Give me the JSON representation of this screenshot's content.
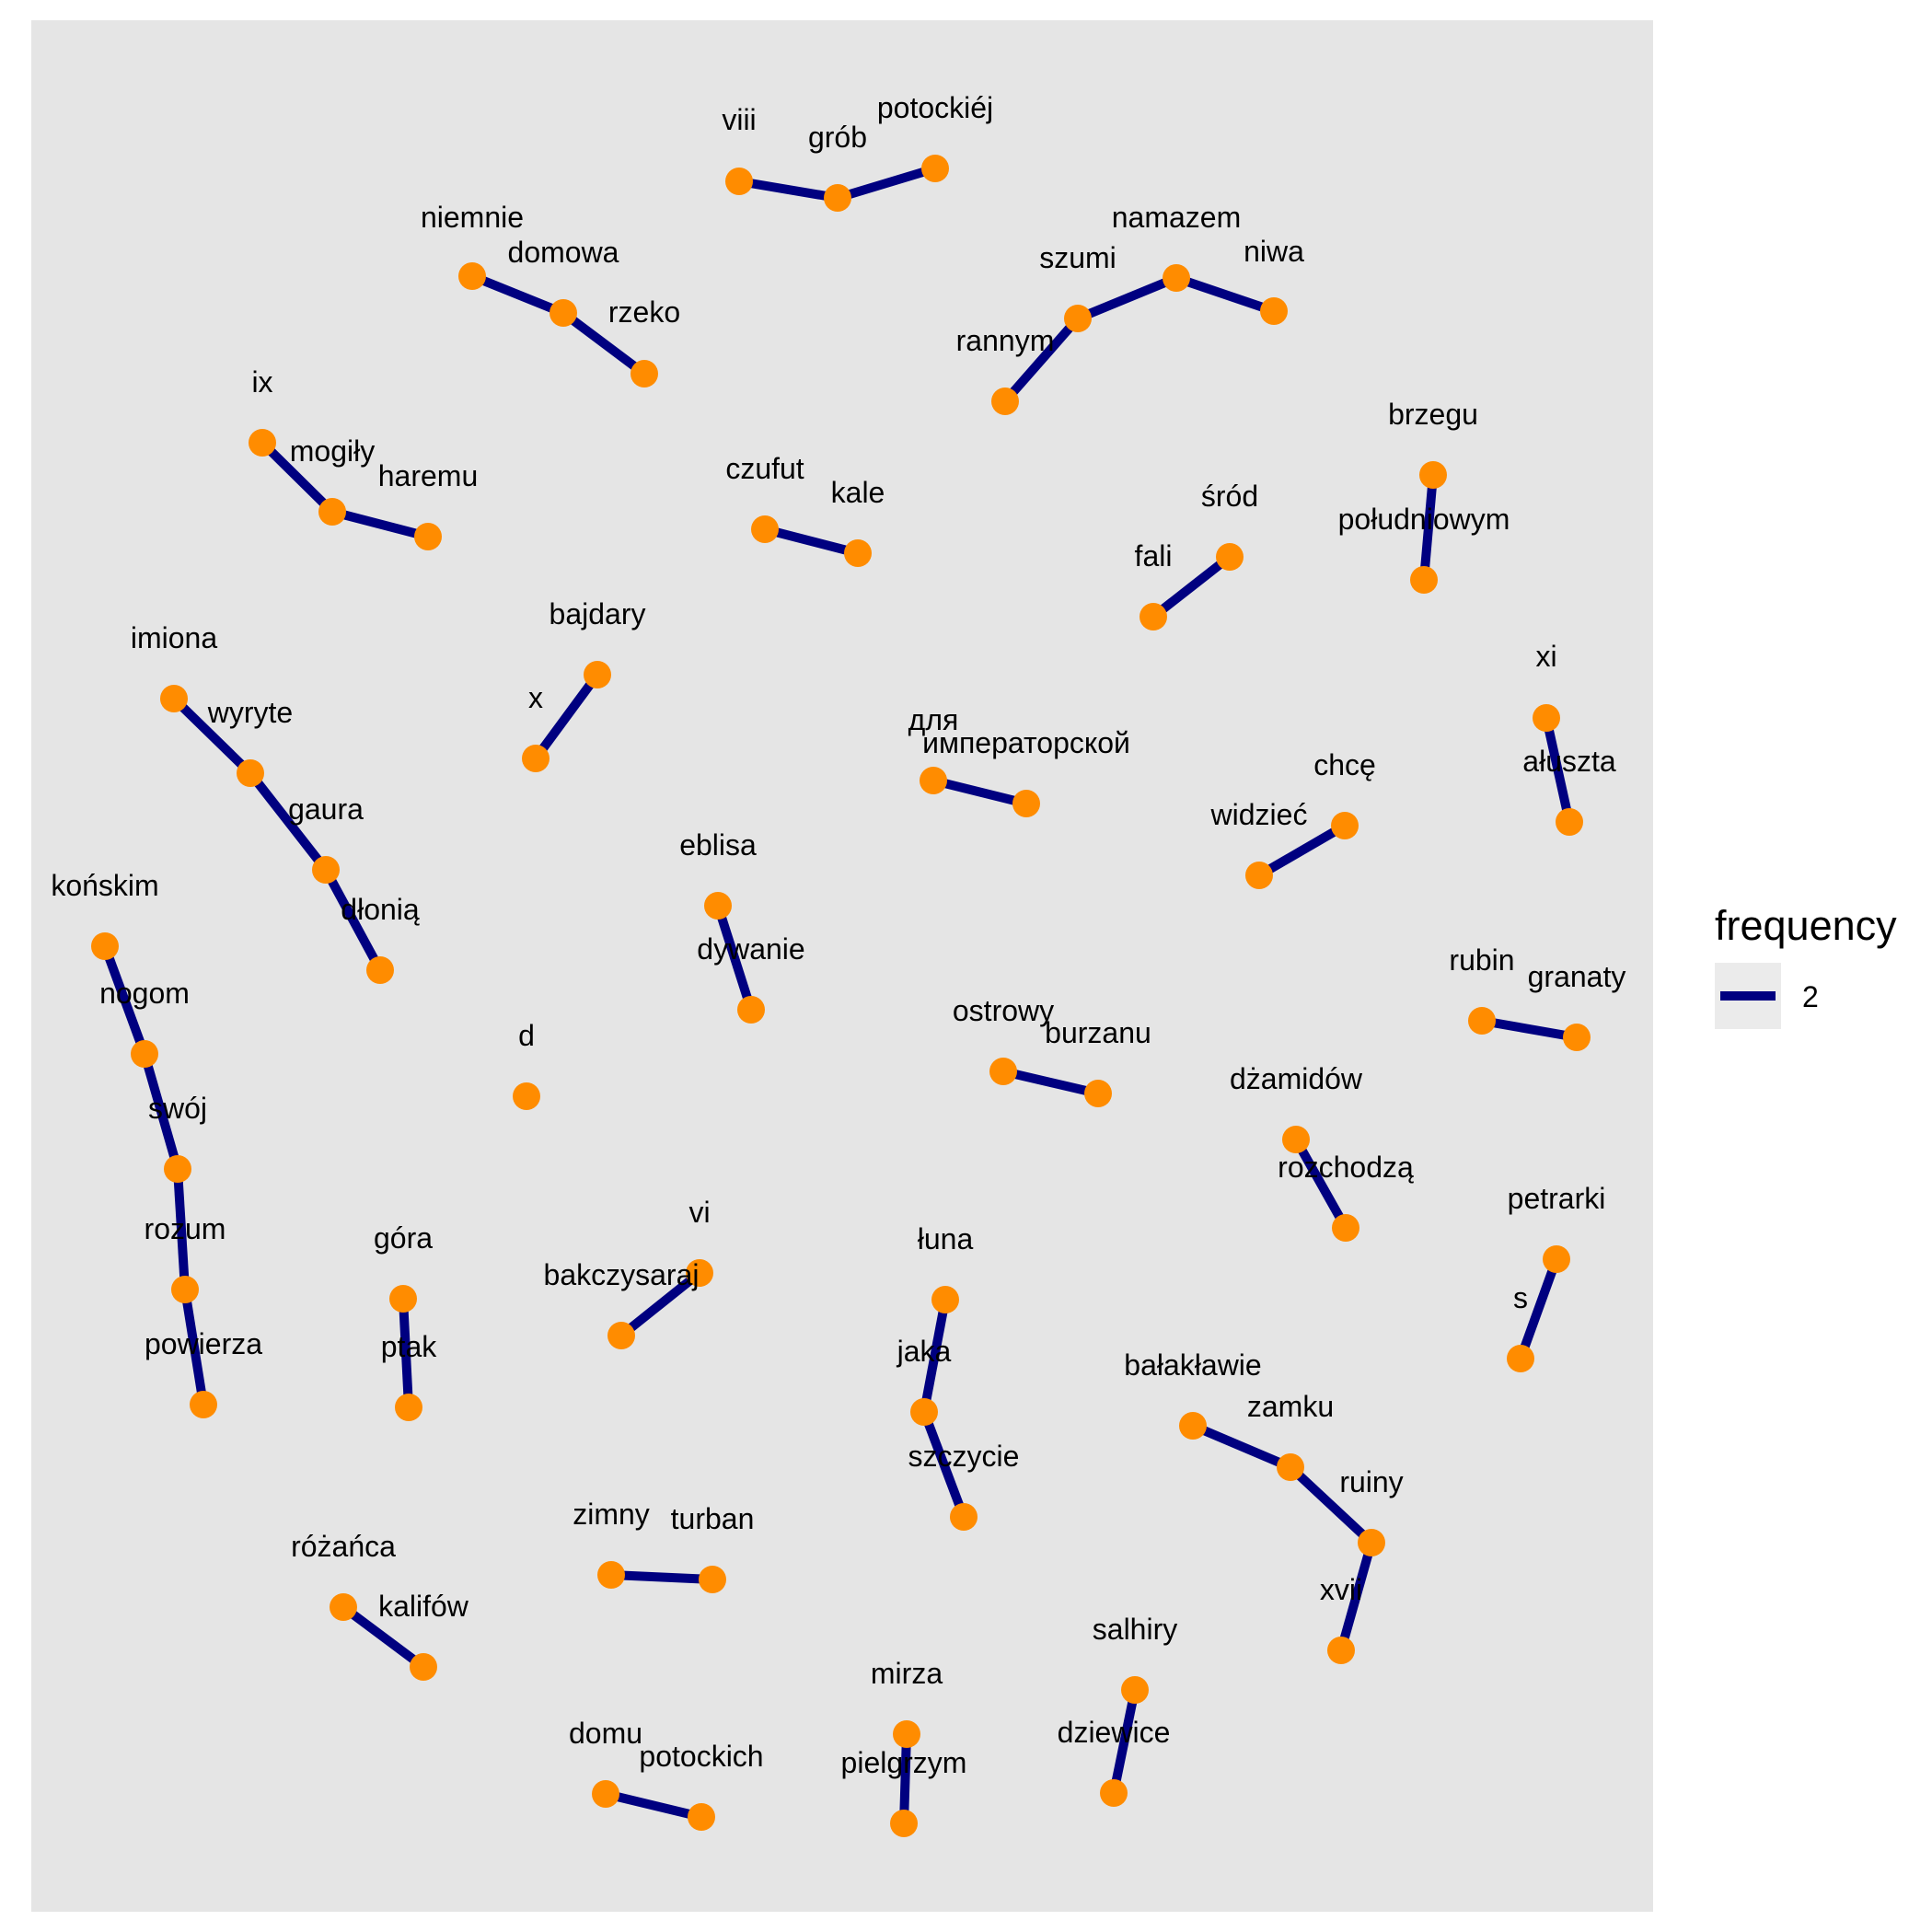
{
  "colors": {
    "panel_background": "#E5E5E5",
    "edge": "#000080",
    "node": "#FF8C00",
    "legend_key_background": "#EBEBEB"
  },
  "legend": {
    "title": "frequency",
    "entries": [
      {
        "label": "2"
      }
    ]
  },
  "graph": {
    "nodes": [
      {
        "id": "viii",
        "label": "viii"
      },
      {
        "id": "grob",
        "label": "grób"
      },
      {
        "id": "potockiej",
        "label": "potockiéj"
      },
      {
        "id": "niemnie",
        "label": "niemnie"
      },
      {
        "id": "domowa",
        "label": "domowa"
      },
      {
        "id": "rzeko",
        "label": "rzeko"
      },
      {
        "id": "namazem",
        "label": "namazem"
      },
      {
        "id": "szumi",
        "label": "szumi"
      },
      {
        "id": "niwa",
        "label": "niwa"
      },
      {
        "id": "rannym",
        "label": "rannym"
      },
      {
        "id": "ix",
        "label": "ix"
      },
      {
        "id": "mogily",
        "label": "mogiły"
      },
      {
        "id": "haremu",
        "label": "haremu"
      },
      {
        "id": "czufut",
        "label": "czufut"
      },
      {
        "id": "kale",
        "label": "kale"
      },
      {
        "id": "brzegu",
        "label": "brzegu"
      },
      {
        "id": "poludniowym",
        "label": "południowym"
      },
      {
        "id": "srod",
        "label": "śród"
      },
      {
        "id": "fali",
        "label": "fali"
      },
      {
        "id": "bajdary",
        "label": "bajdary"
      },
      {
        "id": "x",
        "label": "x"
      },
      {
        "id": "imiona",
        "label": "imiona"
      },
      {
        "id": "wyryte",
        "label": "wyryte"
      },
      {
        "id": "gaura",
        "label": "gaura"
      },
      {
        "id": "dlonia",
        "label": "dłonią"
      },
      {
        "id": "dlya",
        "label": "для"
      },
      {
        "id": "imperatorskoy",
        "label": "императорской"
      },
      {
        "id": "xi",
        "label": "xi"
      },
      {
        "id": "aluszta",
        "label": "ałuszta"
      },
      {
        "id": "chce",
        "label": "chcę"
      },
      {
        "id": "widziec",
        "label": "widzieć"
      },
      {
        "id": "konskim",
        "label": "końskim"
      },
      {
        "id": "nogom",
        "label": "nogom"
      },
      {
        "id": "swoj",
        "label": "swój"
      },
      {
        "id": "rozum",
        "label": "rozum"
      },
      {
        "id": "powierza",
        "label": "powierza"
      },
      {
        "id": "eblisa",
        "label": "eblisa"
      },
      {
        "id": "dywanie",
        "label": "dywanie"
      },
      {
        "id": "rubin",
        "label": "rubin"
      },
      {
        "id": "granaty",
        "label": "granaty"
      },
      {
        "id": "ostrowy",
        "label": "ostrowy"
      },
      {
        "id": "burzanu",
        "label": "burzanu"
      },
      {
        "id": "d",
        "label": "d"
      },
      {
        "id": "dzamidow",
        "label": "dżamidów"
      },
      {
        "id": "rozchodza",
        "label": "rozchodzą"
      },
      {
        "id": "petrarki",
        "label": "petrarki"
      },
      {
        "id": "s",
        "label": "s"
      },
      {
        "id": "gora",
        "label": "góra"
      },
      {
        "id": "ptak",
        "label": "ptak"
      },
      {
        "id": "vi",
        "label": "vi"
      },
      {
        "id": "bakczysaraj",
        "label": "bakczysaraj"
      },
      {
        "id": "luna",
        "label": "łuna"
      },
      {
        "id": "jaka",
        "label": "jaka"
      },
      {
        "id": "szczycie",
        "label": "szczycie"
      },
      {
        "id": "balaklawie",
        "label": "bałakławie"
      },
      {
        "id": "zamku",
        "label": "zamku"
      },
      {
        "id": "ruiny",
        "label": "ruiny"
      },
      {
        "id": "xvii",
        "label": "xvii"
      },
      {
        "id": "zimny",
        "label": "zimny"
      },
      {
        "id": "turban",
        "label": "turban"
      },
      {
        "id": "rozanca",
        "label": "różańca"
      },
      {
        "id": "kalifow",
        "label": "kalifów"
      },
      {
        "id": "salhiry",
        "label": "salhiry"
      },
      {
        "id": "dziewice",
        "label": "dziewice"
      },
      {
        "id": "mirza",
        "label": "mirza"
      },
      {
        "id": "pielgrzym",
        "label": "pielgrzym"
      },
      {
        "id": "domu",
        "label": "domu"
      },
      {
        "id": "potockich",
        "label": "potockich"
      }
    ],
    "edges": [
      {
        "from": "viii",
        "to": "grob",
        "frequency": 2
      },
      {
        "from": "grob",
        "to": "potockiej",
        "frequency": 2
      },
      {
        "from": "niemnie",
        "to": "domowa",
        "frequency": 2
      },
      {
        "from": "domowa",
        "to": "rzeko",
        "frequency": 2
      },
      {
        "from": "rannym",
        "to": "szumi",
        "frequency": 2
      },
      {
        "from": "szumi",
        "to": "namazem",
        "frequency": 2
      },
      {
        "from": "namazem",
        "to": "niwa",
        "frequency": 2
      },
      {
        "from": "ix",
        "to": "mogily",
        "frequency": 2
      },
      {
        "from": "mogily",
        "to": "haremu",
        "frequency": 2
      },
      {
        "from": "czufut",
        "to": "kale",
        "frequency": 2
      },
      {
        "from": "brzegu",
        "to": "poludniowym",
        "frequency": 2
      },
      {
        "from": "srod",
        "to": "fali",
        "frequency": 2
      },
      {
        "from": "bajdary",
        "to": "x",
        "frequency": 2
      },
      {
        "from": "imiona",
        "to": "wyryte",
        "frequency": 2
      },
      {
        "from": "wyryte",
        "to": "gaura",
        "frequency": 2
      },
      {
        "from": "gaura",
        "to": "dlonia",
        "frequency": 2
      },
      {
        "from": "dlya",
        "to": "imperatorskoy",
        "frequency": 2
      },
      {
        "from": "xi",
        "to": "aluszta",
        "frequency": 2
      },
      {
        "from": "chce",
        "to": "widziec",
        "frequency": 2
      },
      {
        "from": "konskim",
        "to": "nogom",
        "frequency": 2
      },
      {
        "from": "nogom",
        "to": "swoj",
        "frequency": 2
      },
      {
        "from": "swoj",
        "to": "rozum",
        "frequency": 2
      },
      {
        "from": "rozum",
        "to": "powierza",
        "frequency": 2
      },
      {
        "from": "eblisa",
        "to": "dywanie",
        "frequency": 2
      },
      {
        "from": "rubin",
        "to": "granaty",
        "frequency": 2
      },
      {
        "from": "ostrowy",
        "to": "burzanu",
        "frequency": 2
      },
      {
        "from": "dzamidow",
        "to": "rozchodza",
        "frequency": 2
      },
      {
        "from": "petrarki",
        "to": "s",
        "frequency": 2
      },
      {
        "from": "gora",
        "to": "ptak",
        "frequency": 2
      },
      {
        "from": "vi",
        "to": "bakczysaraj",
        "frequency": 2
      },
      {
        "from": "luna",
        "to": "jaka",
        "frequency": 2
      },
      {
        "from": "jaka",
        "to": "szczycie",
        "frequency": 2
      },
      {
        "from": "balaklawie",
        "to": "zamku",
        "frequency": 2
      },
      {
        "from": "zamku",
        "to": "ruiny",
        "frequency": 2
      },
      {
        "from": "ruiny",
        "to": "xvii",
        "frequency": 2
      },
      {
        "from": "zimny",
        "to": "turban",
        "frequency": 2
      },
      {
        "from": "rozanca",
        "to": "kalifow",
        "frequency": 2
      },
      {
        "from": "salhiry",
        "to": "dziewice",
        "frequency": 2
      },
      {
        "from": "mirza",
        "to": "pielgrzym",
        "frequency": 2
      },
      {
        "from": "domu",
        "to": "potockich",
        "frequency": 2
      }
    ]
  }
}
